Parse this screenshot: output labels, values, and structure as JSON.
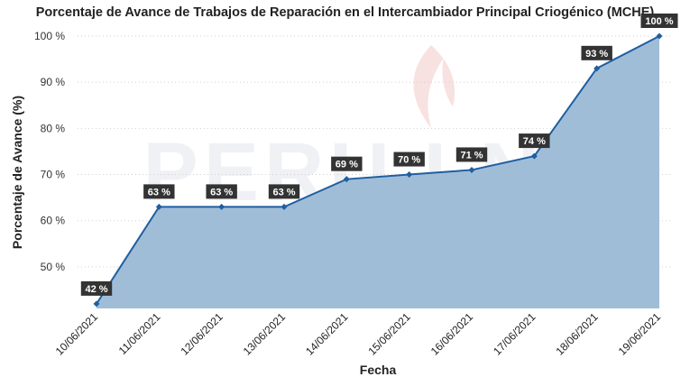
{
  "chart_data": {
    "type": "area",
    "title": "Porcentaje de Avance de Trabajos de Reparación en el Intercambiador Principal Criogénico (MCHE)",
    "xlabel": "Fecha",
    "ylabel": "Porcentaje de Avance (%)",
    "categories": [
      "10/06/2021",
      "11/06/2021",
      "12/06/2021",
      "13/06/2021",
      "14/06/2021",
      "15/06/2021",
      "16/06/2021",
      "17/06/2021",
      "18/06/2021",
      "19/06/2021"
    ],
    "values": [
      42,
      63,
      63,
      63,
      69,
      70,
      71,
      74,
      93,
      100
    ],
    "data_labels": [
      "42 %",
      "63 %",
      "63 %",
      "63 %",
      "69 %",
      "70 %",
      "71 %",
      "74 %",
      "93 %",
      "100 %"
    ],
    "y_ticks": [
      50,
      60,
      70,
      80,
      90,
      100
    ],
    "y_tick_labels": [
      "50 %",
      "60 %",
      "70 %",
      "80 %",
      "90 %",
      "100 %"
    ],
    "ylim": [
      41,
      100
    ],
    "grid": true,
    "watermark": "PERU LNG",
    "colors": {
      "area": "#9BB9D6",
      "line": "#1F5FA0",
      "label_bg": "#333333",
      "grid": "#cfcfcf"
    }
  }
}
